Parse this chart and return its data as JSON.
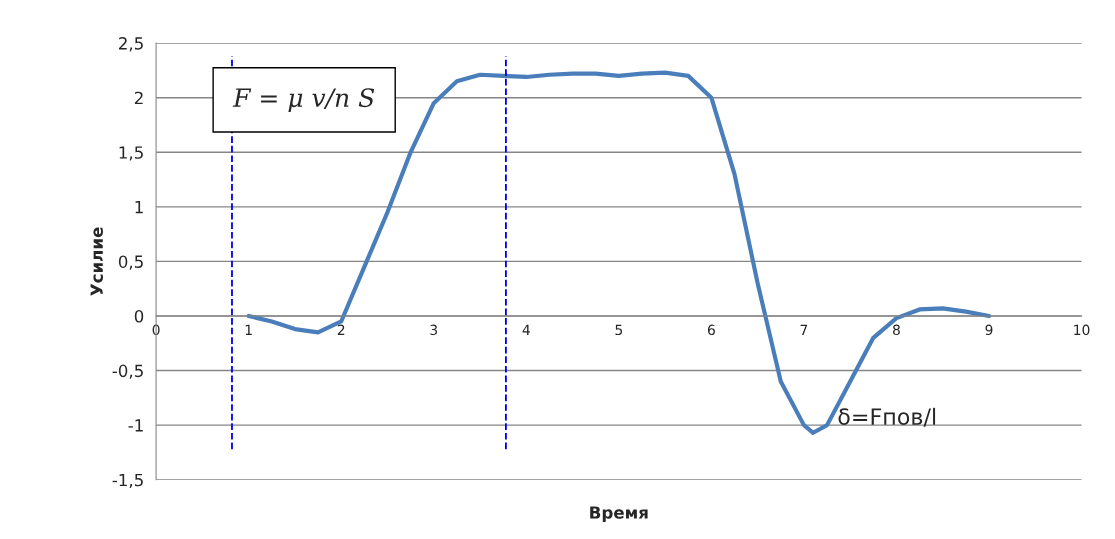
{
  "chart_data": {
    "type": "line",
    "xlabel": "Время",
    "ylabel": "Усилие",
    "xlim": [
      0,
      10
    ],
    "ylim": [
      -1.5,
      2.5
    ],
    "xticks": [
      0,
      1,
      2,
      3,
      4,
      5,
      6,
      7,
      8,
      9,
      10
    ],
    "yticks": [
      {
        "value": -1.5,
        "label": "-1,5"
      },
      {
        "value": -1,
        "label": "-1"
      },
      {
        "value": -0.5,
        "label": "-0,5"
      },
      {
        "value": 0,
        "label": "0"
      },
      {
        "value": 0.5,
        "label": "0,5"
      },
      {
        "value": 1,
        "label": "1"
      },
      {
        "value": 1.5,
        "label": "1,5"
      },
      {
        "value": 2,
        "label": "2"
      },
      {
        "value": 2.5,
        "label": "2,5"
      }
    ],
    "grid": "y",
    "marker": "none",
    "line_style": "solid",
    "series": [
      {
        "color": "#4a7ebb",
        "x": [
          1,
          1.25,
          1.5,
          1.75,
          2,
          2.25,
          2.5,
          2.75,
          3,
          3.25,
          3.5,
          3.75,
          4,
          4.25,
          4.5,
          4.75,
          5,
          5.25,
          5.5,
          5.75,
          6,
          6.25,
          6.5,
          6.75,
          7,
          7.1,
          7.25,
          7.5,
          7.75,
          8,
          8.25,
          8.5,
          8.75,
          9
        ],
        "values": [
          0,
          -0.05,
          -0.12,
          -0.15,
          -0.05,
          0.45,
          0.95,
          1.5,
          1.95,
          2.15,
          2.21,
          2.2,
          2.19,
          2.21,
          2.22,
          2.22,
          2.2,
          2.22,
          2.23,
          2.2,
          2.0,
          1.3,
          0.3,
          -0.6,
          -1.0,
          -1.07,
          -1.0,
          -0.6,
          -0.2,
          -0.02,
          0.06,
          0.07,
          0.04,
          0
        ]
      }
    ],
    "ref_lines": [
      {
        "axis": "x",
        "value": 0.82,
        "color": "#0000ee",
        "line_style": "dashed"
      },
      {
        "axis": "x",
        "value": 3.78,
        "color": "#0000ee",
        "line_style": "dashed"
      }
    ],
    "annotations": [
      "F = μ v/n S",
      "δ=Fпов/l"
    ]
  }
}
